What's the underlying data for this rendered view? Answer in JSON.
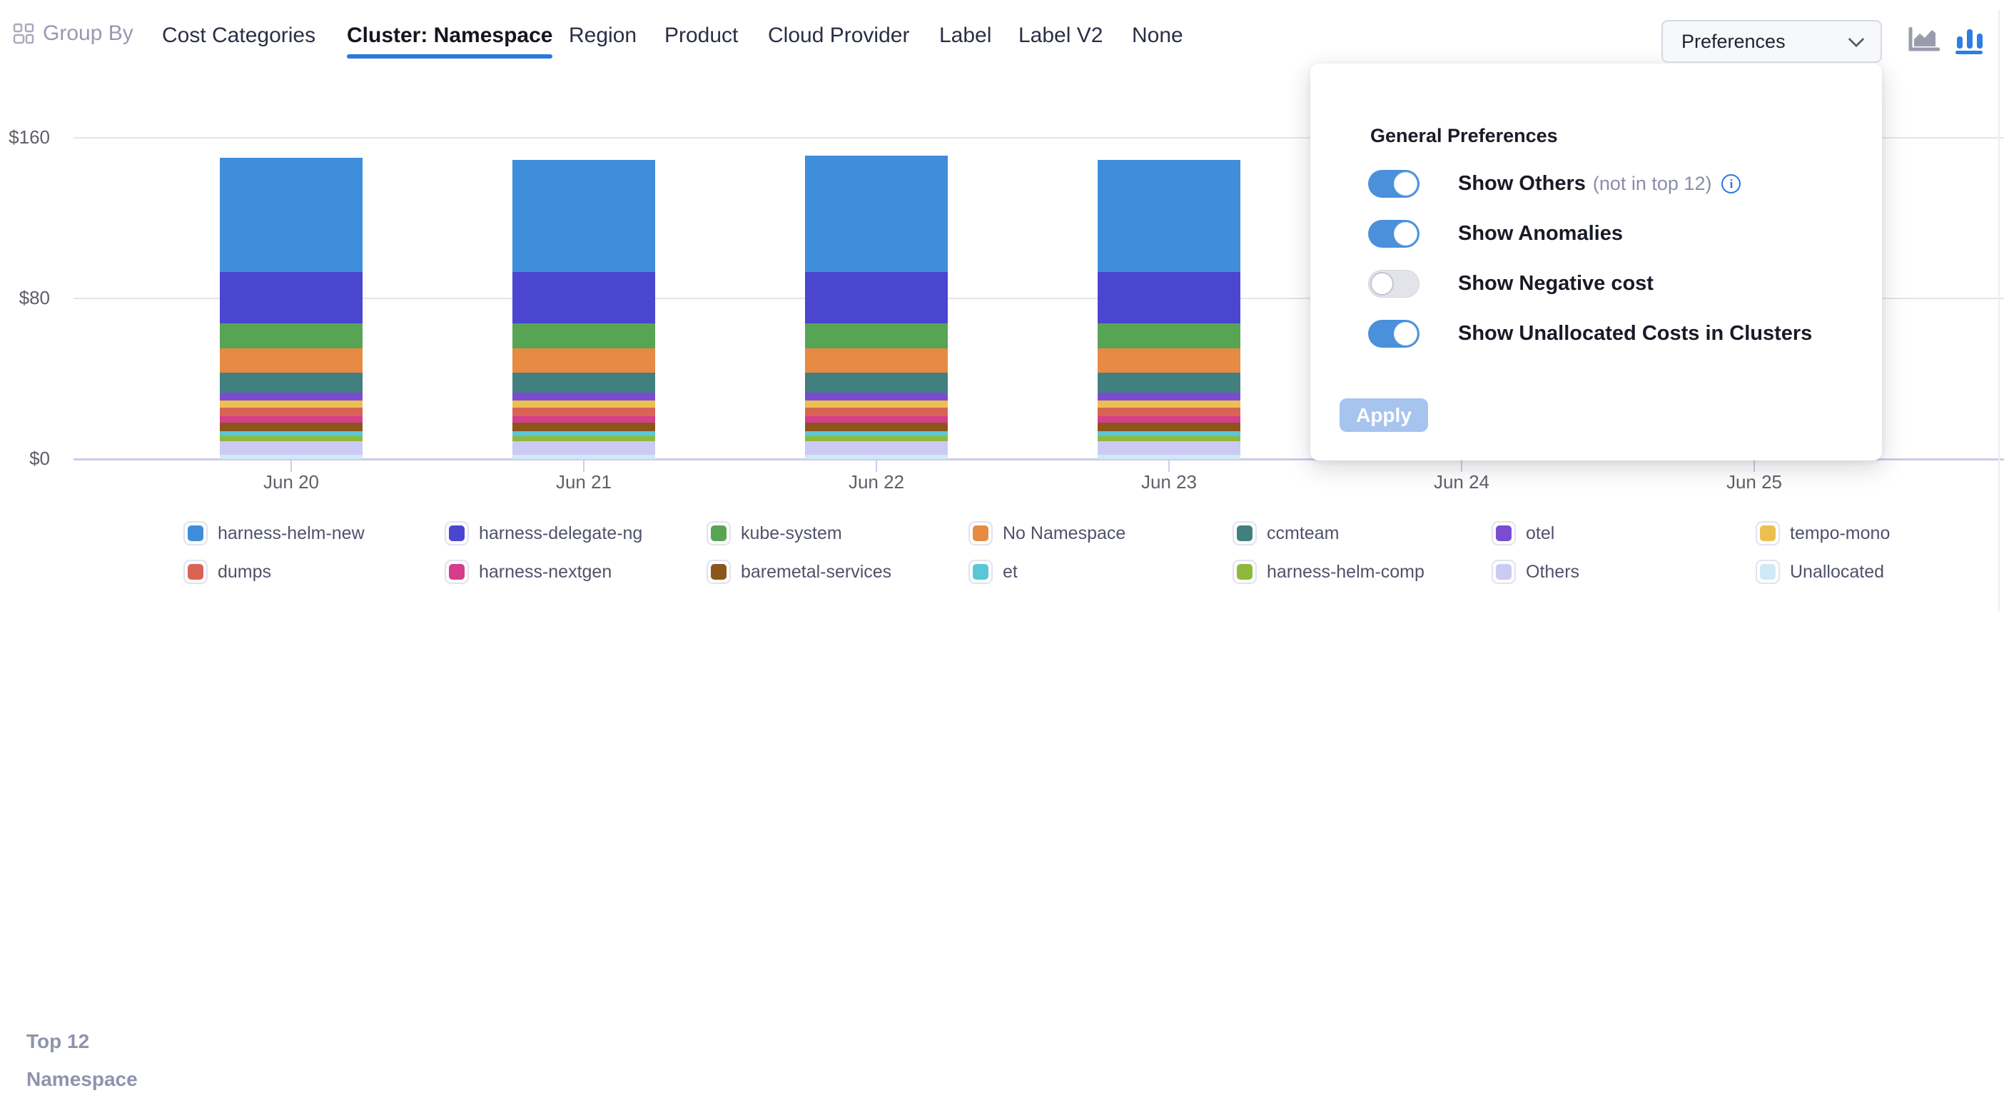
{
  "header": {
    "group_by_label": "Group By",
    "tabs": [
      {
        "label": "Cost Categories",
        "active": false
      },
      {
        "label": "Cluster: Namespace",
        "active": true
      },
      {
        "label": "Region",
        "active": false
      },
      {
        "label": "Product",
        "active": false
      },
      {
        "label": "Cloud Provider",
        "active": false
      },
      {
        "label": "Label",
        "active": false
      },
      {
        "label": "Label V2",
        "active": false
      },
      {
        "label": "None",
        "active": false
      }
    ],
    "preferences_button_label": "Preferences",
    "view_icons": [
      {
        "name": "area-chart-icon",
        "active": false,
        "color": "#9a9cae"
      },
      {
        "name": "bar-chart-icon",
        "active": true,
        "color": "#2f7de0"
      }
    ]
  },
  "preferences_panel": {
    "title": "General Preferences",
    "toggles": [
      {
        "label": "Show Others",
        "suffix": "(not in top 12)",
        "info_icon": true,
        "on": true
      },
      {
        "label": "Show Anomalies",
        "suffix": "",
        "info_icon": false,
        "on": true
      },
      {
        "label": "Show Negative cost",
        "suffix": "",
        "info_icon": false,
        "on": false
      },
      {
        "label": "Show Unallocated Costs in Clusters",
        "suffix": "",
        "info_icon": false,
        "on": true
      }
    ],
    "apply_label": "Apply"
  },
  "chart_data": {
    "type": "bar",
    "stacked": true,
    "x_labels": [
      "Jun 20",
      "Jun 21",
      "Jun 22",
      "Jun 23",
      "Jun 24",
      "Jun 25"
    ],
    "bars_visible_for": [
      "Jun 20",
      "Jun 21",
      "Jun 22",
      "Jun 23"
    ],
    "bars_occluded_note": "Jun 24 and Jun 25 area is covered by the open Preferences panel",
    "y_ticks": [
      "$0",
      "$80",
      "$160"
    ],
    "ylim": [
      0,
      160
    ],
    "y_unit": "USD",
    "stack_order": "first series renders at top of each bar",
    "series": [
      {
        "name": "harness-helm-new",
        "color": "#3E8EDC",
        "values": [
          57,
          56,
          58,
          56
        ]
      },
      {
        "name": "harness-delegate-ng",
        "color": "#4A46CF",
        "values": [
          25.5,
          25.5,
          25.5,
          25.5
        ]
      },
      {
        "name": "kube-system",
        "color": "#58A455",
        "values": [
          12.5,
          12.5,
          12.5,
          12.5
        ]
      },
      {
        "name": "No Namespace",
        "color": "#E78A44",
        "values": [
          12,
          12,
          12,
          12
        ]
      },
      {
        "name": "ccmteam",
        "color": "#41807F",
        "values": [
          10,
          10,
          10,
          10
        ]
      },
      {
        "name": "otel",
        "color": "#7B4BD1",
        "values": [
          4,
          4,
          4,
          4
        ]
      },
      {
        "name": "tempo-mono",
        "color": "#ECC04F",
        "values": [
          3.5,
          3.5,
          3.5,
          3.5
        ]
      },
      {
        "name": "dumps",
        "color": "#D96456",
        "values": [
          4,
          4,
          4,
          4
        ]
      },
      {
        "name": "harness-nextgen",
        "color": "#D63D8C",
        "values": [
          3.5,
          3.5,
          3.5,
          3.5
        ]
      },
      {
        "name": "baremetal-services",
        "color": "#8C551C",
        "values": [
          4,
          4,
          4,
          4
        ]
      },
      {
        "name": "et",
        "color": "#5AC6D6",
        "values": [
          2.5,
          2.5,
          2.5,
          2.5
        ]
      },
      {
        "name": "harness-helm-comp",
        "color": "#8FB93C",
        "values": [
          2.5,
          2.5,
          2.5,
          2.5
        ]
      },
      {
        "name": "Others",
        "color": "#CBCAF4",
        "values": [
          7,
          7,
          7,
          7
        ]
      },
      {
        "name": "Unallocated",
        "color": "#CFE9F6",
        "values": [
          2,
          2,
          2,
          2
        ]
      }
    ]
  },
  "legend": {
    "title": "Top 12\nNamespace",
    "items_row_major": [
      {
        "label": "harness-helm-new",
        "color": "#3E8EDC"
      },
      {
        "label": "harness-delegate-ng",
        "color": "#4A46CF"
      },
      {
        "label": "kube-system",
        "color": "#58A455"
      },
      {
        "label": "No Namespace",
        "color": "#E78A44"
      },
      {
        "label": "ccmteam",
        "color": "#41807F"
      },
      {
        "label": "otel",
        "color": "#7B4BD1"
      },
      {
        "label": "tempo-mono",
        "color": "#ECC04F"
      },
      {
        "label": "dumps",
        "color": "#D96456"
      },
      {
        "label": "harness-nextgen",
        "color": "#D63D8C"
      },
      {
        "label": "baremetal-services",
        "color": "#8C551C"
      },
      {
        "label": "et",
        "color": "#5AC6D6"
      },
      {
        "label": "harness-helm-comp",
        "color": "#8FB93C"
      },
      {
        "label": "Others",
        "color": "#CBCAF4"
      },
      {
        "label": "Unallocated",
        "color": "#CFE9F6"
      }
    ]
  },
  "colors": {
    "accent_blue": "#2878dc",
    "toggle_on": "#4a90da",
    "apply_disabled": "#a6c4ee",
    "axis_line": "#c9cdeb",
    "gridline": "#e4e4e9"
  }
}
